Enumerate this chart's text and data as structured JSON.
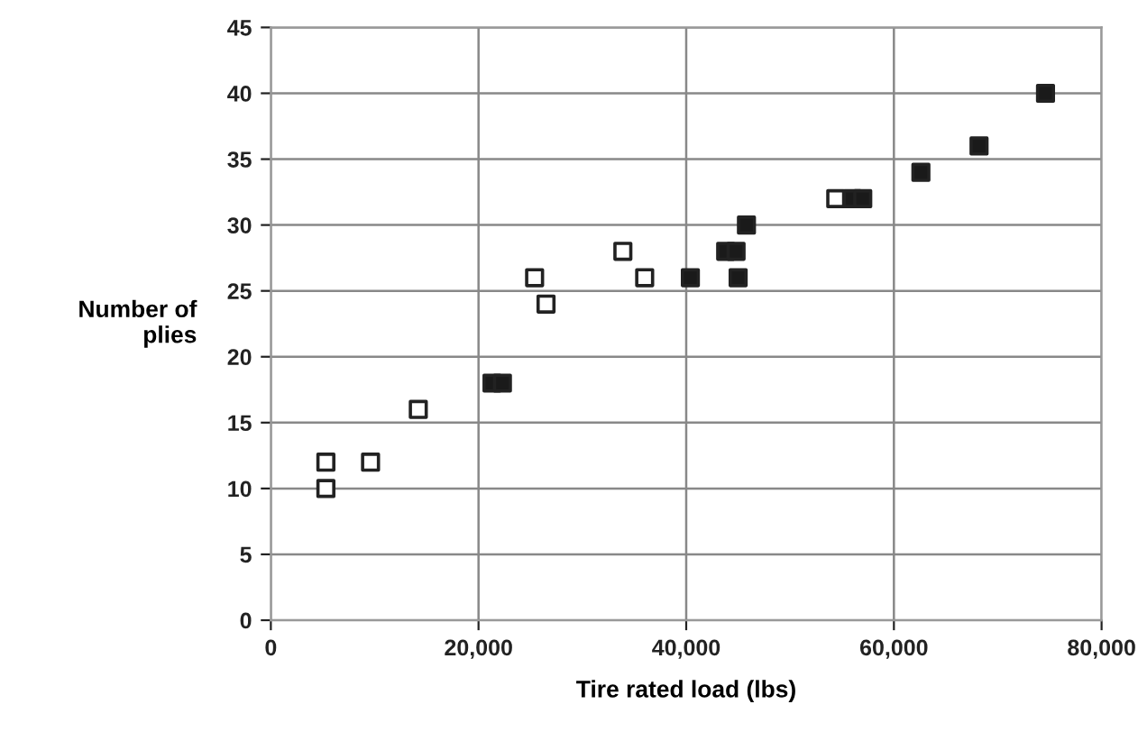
{
  "chart_data": {
    "type": "scatter",
    "xlabel": "Tire rated load (lbs)",
    "ylabel": "Number of\nplies",
    "series": [
      {
        "color": "#ffffff",
        "x": [
          5300,
          5300,
          9600,
          14200,
          25400,
          26500,
          33900,
          36000,
          54400
        ],
        "values": [
          12,
          10,
          12,
          16,
          26,
          24,
          28,
          26,
          32
        ]
      },
      {
        "color": "#1a1a1a",
        "x": [
          21300,
          22300,
          40400,
          43800,
          44800,
          45000,
          45800,
          56000,
          57000,
          62600,
          68200,
          74600
        ],
        "values": [
          18,
          18,
          26,
          28,
          28,
          26,
          30,
          32,
          32,
          34,
          36,
          40
        ]
      }
    ],
    "xlim": [
      0,
      80000
    ],
    "xticks": [
      {
        "value": 0,
        "label": "0"
      },
      {
        "value": 20000,
        "label": "20,000"
      },
      {
        "value": 40000,
        "label": "40,000"
      },
      {
        "value": 60000,
        "label": "60,000"
      },
      {
        "value": 80000,
        "label": "80,000"
      }
    ],
    "ylim": [
      0,
      45
    ],
    "yticks": [
      0,
      5,
      10,
      15,
      20,
      25,
      30,
      35,
      40,
      45
    ],
    "grid": true,
    "marker": "square",
    "legend": false
  }
}
